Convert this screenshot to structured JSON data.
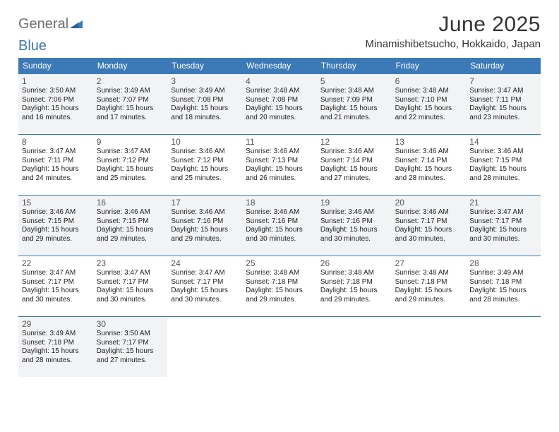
{
  "logo": {
    "word1": "General",
    "word2": "Blue"
  },
  "title": "June 2025",
  "location": "Minamishibetsucho, Hokkaido, Japan",
  "colors": {
    "header_bg": "#3b79b7",
    "header_fg": "#ffffff",
    "shaded_bg": "#f2f3f5",
    "border": "#3b79b7",
    "logo_gray": "#6e6e6e",
    "logo_blue": "#3b79b7",
    "text": "#222222"
  },
  "weekdays": [
    "Sunday",
    "Monday",
    "Tuesday",
    "Wednesday",
    "Thursday",
    "Friday",
    "Saturday"
  ],
  "weeks": [
    {
      "shaded": true,
      "days": [
        {
          "n": "1",
          "sr": "Sunrise: 3:50 AM",
          "ss": "Sunset: 7:06 PM",
          "d1": "Daylight: 15 hours",
          "d2": "and 16 minutes."
        },
        {
          "n": "2",
          "sr": "Sunrise: 3:49 AM",
          "ss": "Sunset: 7:07 PM",
          "d1": "Daylight: 15 hours",
          "d2": "and 17 minutes."
        },
        {
          "n": "3",
          "sr": "Sunrise: 3:49 AM",
          "ss": "Sunset: 7:08 PM",
          "d1": "Daylight: 15 hours",
          "d2": "and 18 minutes."
        },
        {
          "n": "4",
          "sr": "Sunrise: 3:48 AM",
          "ss": "Sunset: 7:08 PM",
          "d1": "Daylight: 15 hours",
          "d2": "and 20 minutes."
        },
        {
          "n": "5",
          "sr": "Sunrise: 3:48 AM",
          "ss": "Sunset: 7:09 PM",
          "d1": "Daylight: 15 hours",
          "d2": "and 21 minutes."
        },
        {
          "n": "6",
          "sr": "Sunrise: 3:48 AM",
          "ss": "Sunset: 7:10 PM",
          "d1": "Daylight: 15 hours",
          "d2": "and 22 minutes."
        },
        {
          "n": "7",
          "sr": "Sunrise: 3:47 AM",
          "ss": "Sunset: 7:11 PM",
          "d1": "Daylight: 15 hours",
          "d2": "and 23 minutes."
        }
      ]
    },
    {
      "shaded": false,
      "days": [
        {
          "n": "8",
          "sr": "Sunrise: 3:47 AM",
          "ss": "Sunset: 7:11 PM",
          "d1": "Daylight: 15 hours",
          "d2": "and 24 minutes."
        },
        {
          "n": "9",
          "sr": "Sunrise: 3:47 AM",
          "ss": "Sunset: 7:12 PM",
          "d1": "Daylight: 15 hours",
          "d2": "and 25 minutes."
        },
        {
          "n": "10",
          "sr": "Sunrise: 3:46 AM",
          "ss": "Sunset: 7:12 PM",
          "d1": "Daylight: 15 hours",
          "d2": "and 25 minutes."
        },
        {
          "n": "11",
          "sr": "Sunrise: 3:46 AM",
          "ss": "Sunset: 7:13 PM",
          "d1": "Daylight: 15 hours",
          "d2": "and 26 minutes."
        },
        {
          "n": "12",
          "sr": "Sunrise: 3:46 AM",
          "ss": "Sunset: 7:14 PM",
          "d1": "Daylight: 15 hours",
          "d2": "and 27 minutes."
        },
        {
          "n": "13",
          "sr": "Sunrise: 3:46 AM",
          "ss": "Sunset: 7:14 PM",
          "d1": "Daylight: 15 hours",
          "d2": "and 28 minutes."
        },
        {
          "n": "14",
          "sr": "Sunrise: 3:46 AM",
          "ss": "Sunset: 7:15 PM",
          "d1": "Daylight: 15 hours",
          "d2": "and 28 minutes."
        }
      ]
    },
    {
      "shaded": true,
      "days": [
        {
          "n": "15",
          "sr": "Sunrise: 3:46 AM",
          "ss": "Sunset: 7:15 PM",
          "d1": "Daylight: 15 hours",
          "d2": "and 29 minutes."
        },
        {
          "n": "16",
          "sr": "Sunrise: 3:46 AM",
          "ss": "Sunset: 7:15 PM",
          "d1": "Daylight: 15 hours",
          "d2": "and 29 minutes."
        },
        {
          "n": "17",
          "sr": "Sunrise: 3:46 AM",
          "ss": "Sunset: 7:16 PM",
          "d1": "Daylight: 15 hours",
          "d2": "and 29 minutes."
        },
        {
          "n": "18",
          "sr": "Sunrise: 3:46 AM",
          "ss": "Sunset: 7:16 PM",
          "d1": "Daylight: 15 hours",
          "d2": "and 30 minutes."
        },
        {
          "n": "19",
          "sr": "Sunrise: 3:46 AM",
          "ss": "Sunset: 7:16 PM",
          "d1": "Daylight: 15 hours",
          "d2": "and 30 minutes."
        },
        {
          "n": "20",
          "sr": "Sunrise: 3:46 AM",
          "ss": "Sunset: 7:17 PM",
          "d1": "Daylight: 15 hours",
          "d2": "and 30 minutes."
        },
        {
          "n": "21",
          "sr": "Sunrise: 3:47 AM",
          "ss": "Sunset: 7:17 PM",
          "d1": "Daylight: 15 hours",
          "d2": "and 30 minutes."
        }
      ]
    },
    {
      "shaded": false,
      "days": [
        {
          "n": "22",
          "sr": "Sunrise: 3:47 AM",
          "ss": "Sunset: 7:17 PM",
          "d1": "Daylight: 15 hours",
          "d2": "and 30 minutes."
        },
        {
          "n": "23",
          "sr": "Sunrise: 3:47 AM",
          "ss": "Sunset: 7:17 PM",
          "d1": "Daylight: 15 hours",
          "d2": "and 30 minutes."
        },
        {
          "n": "24",
          "sr": "Sunrise: 3:47 AM",
          "ss": "Sunset: 7:17 PM",
          "d1": "Daylight: 15 hours",
          "d2": "and 30 minutes."
        },
        {
          "n": "25",
          "sr": "Sunrise: 3:48 AM",
          "ss": "Sunset: 7:18 PM",
          "d1": "Daylight: 15 hours",
          "d2": "and 29 minutes."
        },
        {
          "n": "26",
          "sr": "Sunrise: 3:48 AM",
          "ss": "Sunset: 7:18 PM",
          "d1": "Daylight: 15 hours",
          "d2": "and 29 minutes."
        },
        {
          "n": "27",
          "sr": "Sunrise: 3:48 AM",
          "ss": "Sunset: 7:18 PM",
          "d1": "Daylight: 15 hours",
          "d2": "and 29 minutes."
        },
        {
          "n": "28",
          "sr": "Sunrise: 3:49 AM",
          "ss": "Sunset: 7:18 PM",
          "d1": "Daylight: 15 hours",
          "d2": "and 28 minutes."
        }
      ]
    },
    {
      "shaded": true,
      "days": [
        {
          "n": "29",
          "sr": "Sunrise: 3:49 AM",
          "ss": "Sunset: 7:18 PM",
          "d1": "Daylight: 15 hours",
          "d2": "and 28 minutes."
        },
        {
          "n": "30",
          "sr": "Sunrise: 3:50 AM",
          "ss": "Sunset: 7:17 PM",
          "d1": "Daylight: 15 hours",
          "d2": "and 27 minutes."
        },
        null,
        null,
        null,
        null,
        null
      ]
    }
  ]
}
